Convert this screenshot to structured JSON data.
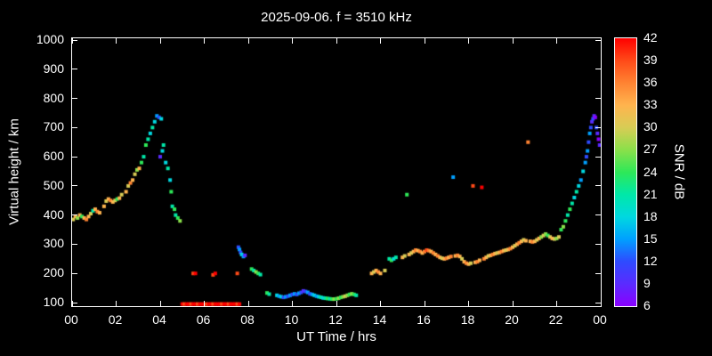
{
  "title": "2025-09-06. f = 3510 kHz",
  "chart_data": {
    "type": "scatter",
    "title": "2025-09-06. f = 3510 kHz",
    "xlabel": "UT Time / hrs",
    "ylabel": "Virtual height / km",
    "colorbar_label": "SNR / dB",
    "xlim": [
      0,
      24
    ],
    "ylim": [
      100,
      1000
    ],
    "grid": false,
    "background": "#000000",
    "axis_color": "#ffffff",
    "x_ticks": [
      {
        "v": 0,
        "label": "00"
      },
      {
        "v": 2,
        "label": "02"
      },
      {
        "v": 4,
        "label": "04"
      },
      {
        "v": 6,
        "label": "06"
      },
      {
        "v": 8,
        "label": "08"
      },
      {
        "v": 10,
        "label": "10"
      },
      {
        "v": 12,
        "label": "12"
      },
      {
        "v": 14,
        "label": "14"
      },
      {
        "v": 16,
        "label": "16"
      },
      {
        "v": 18,
        "label": "18"
      },
      {
        "v": 20,
        "label": "20"
      },
      {
        "v": 22,
        "label": "22"
      },
      {
        "v": 24,
        "label": "00"
      }
    ],
    "y_ticks": [
      100,
      200,
      300,
      400,
      500,
      600,
      700,
      800,
      900,
      1000
    ],
    "colorbar_ticks": [
      42,
      39,
      36,
      33,
      30,
      27,
      24,
      21,
      18,
      15,
      12,
      9,
      6
    ],
    "snr_range": [
      6,
      42
    ],
    "snr_colors": {
      "6": "#8a00ff",
      "9": "#5a2bff",
      "12": "#2e4bff",
      "15": "#00a0ff",
      "18": "#00d8e0",
      "21": "#00e8a8",
      "24": "#2ee858",
      "27": "#8ae04a",
      "30": "#d8cc55",
      "33": "#ffb44e",
      "36": "#ff8332",
      "39": "#ff4a18",
      "42": "#ff0000"
    },
    "points": [
      [
        0.05,
        385,
        30
      ],
      [
        0.15,
        395,
        33
      ],
      [
        0.25,
        390,
        27
      ],
      [
        0.35,
        400,
        33
      ],
      [
        0.45,
        395,
        24
      ],
      [
        0.55,
        390,
        33
      ],
      [
        0.65,
        385,
        36
      ],
      [
        0.75,
        395,
        33
      ],
      [
        0.85,
        405,
        30
      ],
      [
        0.95,
        415,
        21
      ],
      [
        1.05,
        420,
        33
      ],
      [
        1.15,
        412,
        36
      ],
      [
        1.25,
        408,
        33
      ],
      [
        1.45,
        430,
        33
      ],
      [
        1.55,
        448,
        30
      ],
      [
        1.65,
        455,
        33
      ],
      [
        1.75,
        450,
        36
      ],
      [
        1.85,
        445,
        33
      ],
      [
        1.95,
        450,
        30
      ],
      [
        2.05,
        455,
        24
      ],
      [
        2.15,
        458,
        33
      ],
      [
        2.25,
        470,
        30
      ],
      [
        2.45,
        480,
        33
      ],
      [
        2.55,
        500,
        30
      ],
      [
        2.65,
        510,
        36
      ],
      [
        2.75,
        520,
        33
      ],
      [
        2.85,
        540,
        30
      ],
      [
        2.95,
        555,
        27
      ],
      [
        3.05,
        560,
        33
      ],
      [
        3.15,
        580,
        24
      ],
      [
        3.25,
        600,
        21
      ],
      [
        3.35,
        640,
        24
      ],
      [
        3.45,
        660,
        21
      ],
      [
        3.55,
        680,
        18
      ],
      [
        3.65,
        700,
        21
      ],
      [
        3.75,
        720,
        18
      ],
      [
        3.85,
        740,
        15
      ],
      [
        3.95,
        735,
        12
      ],
      [
        4.0,
        600,
        9
      ],
      [
        4.05,
        730,
        18
      ],
      [
        4.1,
        620,
        18
      ],
      [
        4.15,
        640,
        21
      ],
      [
        4.25,
        580,
        18
      ],
      [
        4.35,
        560,
        21
      ],
      [
        4.45,
        520,
        18
      ],
      [
        4.5,
        480,
        24
      ],
      [
        4.55,
        430,
        21
      ],
      [
        4.65,
        420,
        24
      ],
      [
        4.7,
        400,
        21
      ],
      [
        4.8,
        390,
        24
      ],
      [
        4.9,
        380,
        27
      ],
      [
        5.0,
        95,
        42
      ],
      [
        5.1,
        95,
        39
      ],
      [
        5.2,
        95,
        42
      ],
      [
        5.3,
        95,
        42
      ],
      [
        5.4,
        95,
        39
      ],
      [
        5.5,
        95,
        42
      ],
      [
        5.6,
        95,
        42
      ],
      [
        5.7,
        95,
        39
      ],
      [
        5.8,
        95,
        42
      ],
      [
        5.9,
        95,
        42
      ],
      [
        6.0,
        95,
        42
      ],
      [
        6.1,
        95,
        39
      ],
      [
        6.2,
        95,
        42
      ],
      [
        6.3,
        95,
        42
      ],
      [
        6.4,
        95,
        39
      ],
      [
        6.5,
        95,
        42
      ],
      [
        6.6,
        95,
        42
      ],
      [
        6.7,
        95,
        42
      ],
      [
        6.8,
        95,
        39
      ],
      [
        6.9,
        95,
        42
      ],
      [
        7.0,
        95,
        42
      ],
      [
        7.1,
        95,
        39
      ],
      [
        7.2,
        95,
        42
      ],
      [
        7.3,
        95,
        42
      ],
      [
        7.4,
        95,
        42
      ],
      [
        7.5,
        95,
        39
      ],
      [
        7.6,
        95,
        42
      ],
      [
        5.5,
        200,
        39
      ],
      [
        5.6,
        200,
        42
      ],
      [
        6.4,
        195,
        39
      ],
      [
        6.5,
        200,
        42
      ],
      [
        7.5,
        200,
        39
      ],
      [
        7.55,
        290,
        12
      ],
      [
        7.6,
        282,
        15
      ],
      [
        7.65,
        272,
        12
      ],
      [
        7.7,
        265,
        18
      ],
      [
        7.78,
        258,
        15
      ],
      [
        7.85,
        262,
        9
      ],
      [
        8.15,
        215,
        24
      ],
      [
        8.25,
        210,
        21
      ],
      [
        8.35,
        205,
        27
      ],
      [
        8.45,
        200,
        24
      ],
      [
        8.55,
        196,
        21
      ],
      [
        8.85,
        133,
        24
      ],
      [
        8.95,
        129,
        21
      ],
      [
        9.3,
        125,
        18
      ],
      [
        9.4,
        122,
        15
      ],
      [
        9.5,
        120,
        18
      ],
      [
        9.6,
        118,
        12
      ],
      [
        9.7,
        120,
        15
      ],
      [
        9.8,
        122,
        12
      ],
      [
        9.9,
        125,
        15
      ],
      [
        10.0,
        128,
        12
      ],
      [
        10.1,
        130,
        15
      ],
      [
        10.2,
        128,
        12
      ],
      [
        10.3,
        132,
        15
      ],
      [
        10.4,
        135,
        12
      ],
      [
        10.5,
        140,
        9
      ],
      [
        10.6,
        138,
        12
      ],
      [
        10.7,
        135,
        15
      ],
      [
        10.8,
        130,
        12
      ],
      [
        10.9,
        128,
        15
      ],
      [
        11.0,
        125,
        18
      ],
      [
        11.1,
        122,
        15
      ],
      [
        11.2,
        120,
        18
      ],
      [
        11.3,
        118,
        21
      ],
      [
        11.4,
        116,
        18
      ],
      [
        11.5,
        115,
        21
      ],
      [
        11.6,
        114,
        24
      ],
      [
        11.7,
        113,
        21
      ],
      [
        11.8,
        112,
        24
      ],
      [
        11.9,
        112,
        27
      ],
      [
        12.0,
        113,
        24
      ],
      [
        12.1,
        115,
        27
      ],
      [
        12.2,
        118,
        24
      ],
      [
        12.3,
        120,
        27
      ],
      [
        12.4,
        122,
        30
      ],
      [
        12.5,
        125,
        27
      ],
      [
        12.6,
        128,
        24
      ],
      [
        12.7,
        130,
        27
      ],
      [
        12.8,
        128,
        24
      ],
      [
        12.9,
        125,
        21
      ],
      [
        13.6,
        200,
        33
      ],
      [
        13.7,
        205,
        30
      ],
      [
        13.8,
        210,
        33
      ],
      [
        13.9,
        205,
        36
      ],
      [
        14.0,
        200,
        33
      ],
      [
        14.2,
        210,
        30
      ],
      [
        14.4,
        250,
        21
      ],
      [
        14.5,
        245,
        24
      ],
      [
        14.6,
        250,
        18
      ],
      [
        14.7,
        255,
        21
      ],
      [
        15.0,
        255,
        33
      ],
      [
        15.1,
        260,
        30
      ],
      [
        15.2,
        470,
        24
      ],
      [
        15.3,
        265,
        33
      ],
      [
        15.4,
        270,
        30
      ],
      [
        15.5,
        275,
        33
      ],
      [
        15.6,
        280,
        36
      ],
      [
        15.7,
        278,
        33
      ],
      [
        15.8,
        275,
        36
      ],
      [
        15.9,
        270,
        33
      ],
      [
        16.0,
        275,
        36
      ],
      [
        16.1,
        280,
        39
      ],
      [
        16.2,
        278,
        36
      ],
      [
        16.3,
        275,
        33
      ],
      [
        16.4,
        270,
        36
      ],
      [
        16.5,
        265,
        33
      ],
      [
        16.6,
        260,
        36
      ],
      [
        16.7,
        255,
        33
      ],
      [
        16.8,
        252,
        30
      ],
      [
        16.9,
        250,
        33
      ],
      [
        17.0,
        252,
        36
      ],
      [
        17.1,
        255,
        33
      ],
      [
        17.2,
        258,
        36
      ],
      [
        17.3,
        530,
        15
      ],
      [
        17.4,
        260,
        33
      ],
      [
        17.5,
        262,
        36
      ],
      [
        17.6,
        258,
        33
      ],
      [
        17.7,
        250,
        30
      ],
      [
        17.8,
        240,
        33
      ],
      [
        17.9,
        235,
        36
      ],
      [
        18.0,
        232,
        33
      ],
      [
        18.1,
        235,
        30
      ],
      [
        18.2,
        500,
        39
      ],
      [
        18.3,
        238,
        33
      ],
      [
        18.4,
        240,
        36
      ],
      [
        18.5,
        245,
        33
      ],
      [
        18.6,
        495,
        42
      ],
      [
        18.7,
        250,
        36
      ],
      [
        18.8,
        255,
        33
      ],
      [
        18.9,
        260,
        30
      ],
      [
        19.0,
        262,
        33
      ],
      [
        19.1,
        265,
        36
      ],
      [
        19.2,
        268,
        33
      ],
      [
        19.3,
        270,
        30
      ],
      [
        19.4,
        272,
        33
      ],
      [
        19.5,
        275,
        36
      ],
      [
        19.6,
        278,
        33
      ],
      [
        19.7,
        280,
        30
      ],
      [
        19.8,
        282,
        33
      ],
      [
        19.9,
        285,
        36
      ],
      [
        20.0,
        290,
        33
      ],
      [
        20.1,
        295,
        30
      ],
      [
        20.2,
        300,
        33
      ],
      [
        20.3,
        305,
        36
      ],
      [
        20.4,
        310,
        33
      ],
      [
        20.5,
        315,
        30
      ],
      [
        20.6,
        312,
        33
      ],
      [
        20.7,
        650,
        36
      ],
      [
        20.8,
        310,
        33
      ],
      [
        20.9,
        308,
        36
      ],
      [
        21.0,
        310,
        33
      ],
      [
        21.1,
        315,
        30
      ],
      [
        21.2,
        320,
        33
      ],
      [
        21.3,
        325,
        27
      ],
      [
        21.4,
        330,
        30
      ],
      [
        21.5,
        335,
        27
      ],
      [
        21.6,
        330,
        24
      ],
      [
        21.7,
        325,
        30
      ],
      [
        21.8,
        320,
        33
      ],
      [
        21.9,
        318,
        30
      ],
      [
        22.0,
        320,
        27
      ],
      [
        22.1,
        325,
        30
      ],
      [
        22.2,
        350,
        24
      ],
      [
        22.3,
        360,
        27
      ],
      [
        22.4,
        380,
        24
      ],
      [
        22.5,
        400,
        21
      ],
      [
        22.6,
        420,
        24
      ],
      [
        22.7,
        440,
        21
      ],
      [
        22.8,
        460,
        18
      ],
      [
        22.9,
        480,
        21
      ],
      [
        23.0,
        500,
        18
      ],
      [
        23.1,
        520,
        15
      ],
      [
        23.2,
        550,
        18
      ],
      [
        23.3,
        580,
        15
      ],
      [
        23.35,
        600,
        12
      ],
      [
        23.4,
        620,
        15
      ],
      [
        23.45,
        650,
        12
      ],
      [
        23.5,
        680,
        15
      ],
      [
        23.55,
        700,
        12
      ],
      [
        23.6,
        720,
        9
      ],
      [
        23.65,
        730,
        12
      ],
      [
        23.7,
        740,
        9
      ],
      [
        23.75,
        735,
        6
      ],
      [
        23.8,
        700,
        12
      ],
      [
        23.85,
        680,
        9
      ],
      [
        23.9,
        660,
        6
      ],
      [
        23.95,
        640,
        9
      ]
    ]
  }
}
